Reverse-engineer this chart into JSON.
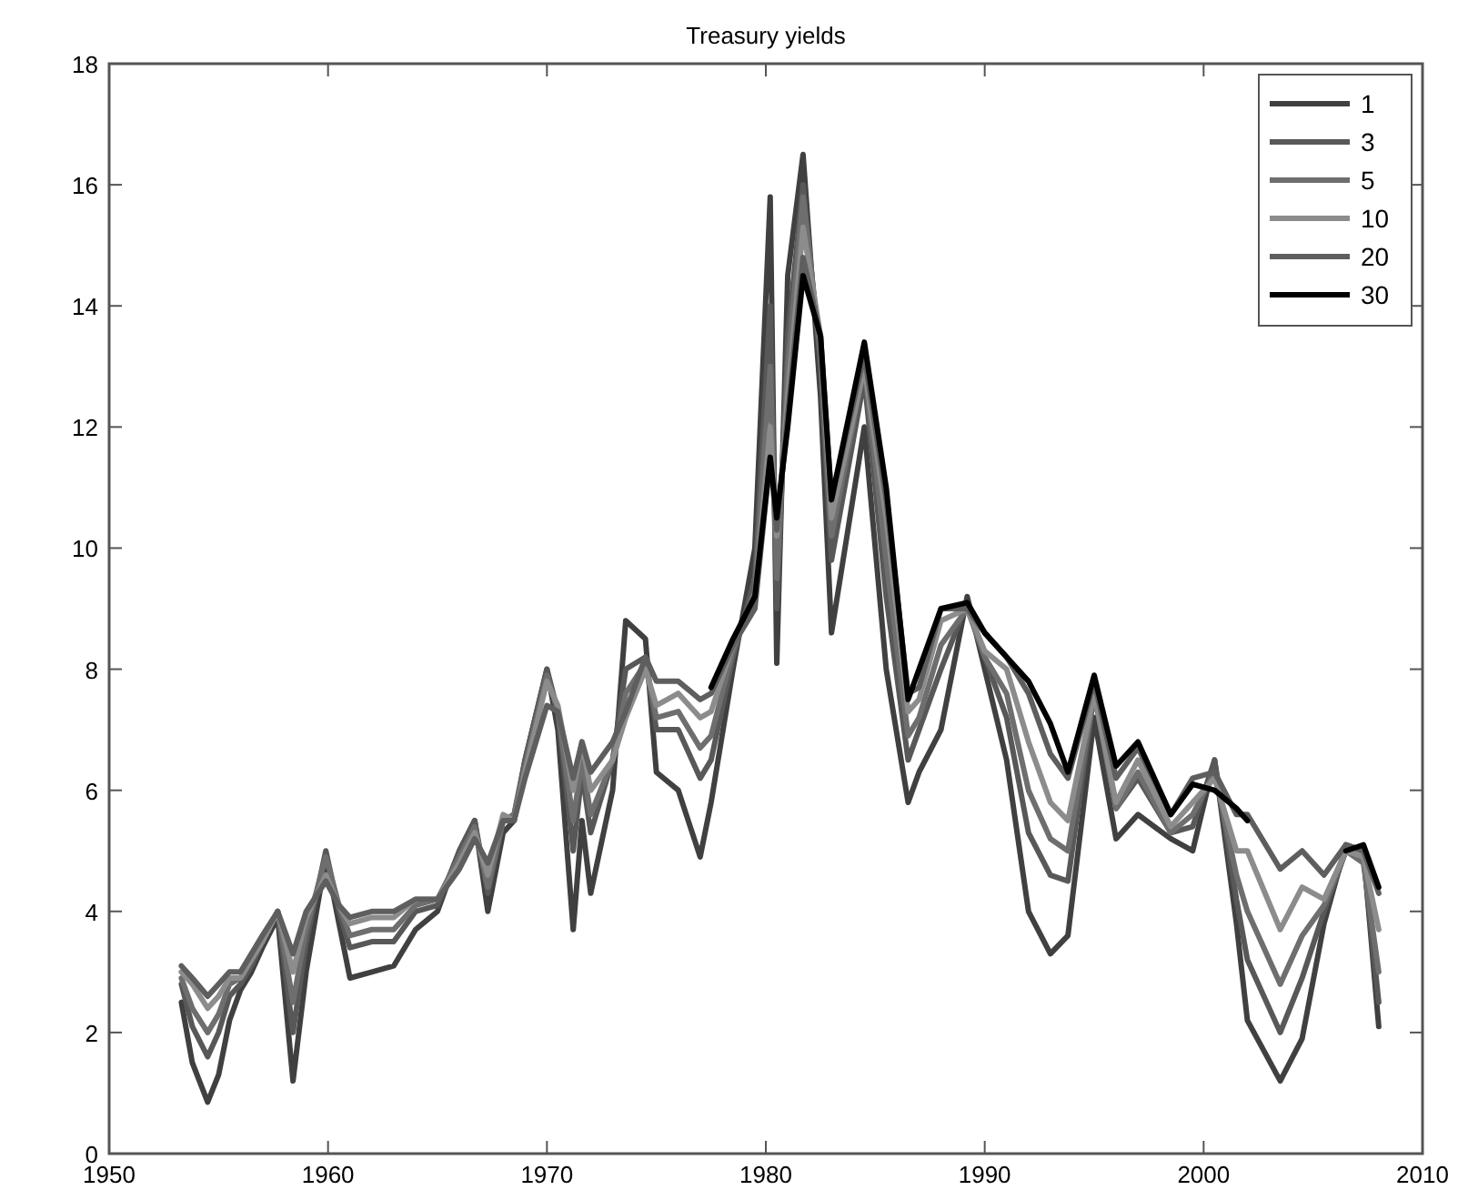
{
  "chart_data": {
    "type": "line",
    "title": "Treasury yields",
    "legend": "top right",
    "xlim": [
      1950,
      2010
    ],
    "xticks": [
      1950,
      1960,
      1970,
      1980,
      1990,
      2000,
      2010
    ],
    "ylim": [
      0,
      18
    ],
    "yticks": [
      0,
      2,
      4,
      6,
      8,
      10,
      12,
      14,
      16,
      18
    ],
    "x": [
      1953.3,
      1953.8,
      1954.5,
      1955.0,
      1955.5,
      1956.0,
      1956.5,
      1957.0,
      1957.7,
      1958.4,
      1959.0,
      1959.9,
      1960.5,
      1961.0,
      1962.0,
      1963.0,
      1964.0,
      1965.0,
      1966.0,
      1966.7,
      1967.3,
      1968.0,
      1968.5,
      1969.0,
      1970.0,
      1970.5,
      1971.2,
      1971.6,
      1972.0,
      1973.0,
      1973.6,
      1974.5,
      1975.0,
      1976.0,
      1977.0,
      1977.5,
      1978.5,
      1979.5,
      1980.2,
      1980.5,
      1981.0,
      1981.7,
      1982.5,
      1983.0,
      1984.5,
      1985.5,
      1986.5,
      1987.0,
      1988.0,
      1989.2,
      1990.0,
      1991.0,
      1992.0,
      1993.0,
      1993.8,
      1995.0,
      1996.0,
      1997.0,
      1998.5,
      1999.5,
      2000.5,
      2001.5,
      2002.0,
      2003.5,
      2004.5,
      2005.5,
      2006.5,
      2007.3,
      2008.0
    ],
    "series": [
      {
        "name": "1",
        "color": "#404040",
        "values": [
          2.5,
          1.5,
          0.85,
          1.3,
          2.2,
          2.7,
          3.0,
          3.4,
          3.9,
          1.2,
          3.0,
          4.9,
          3.8,
          2.9,
          3.0,
          3.1,
          3.7,
          4.0,
          5.0,
          5.5,
          4.0,
          5.3,
          5.5,
          6.5,
          8.0,
          7.0,
          3.7,
          5.5,
          4.3,
          6.0,
          8.8,
          8.5,
          6.3,
          6.0,
          4.9,
          5.8,
          8.0,
          10.0,
          15.8,
          8.1,
          14.5,
          16.5,
          12.5,
          8.6,
          12.0,
          8.0,
          5.8,
          6.3,
          7.0,
          9.2,
          8.0,
          6.5,
          4.0,
          3.3,
          3.6,
          7.2,
          5.2,
          5.6,
          5.2,
          5.0,
          6.5,
          3.8,
          2.2,
          1.2,
          1.9,
          3.8,
          5.1,
          5.0,
          2.1
        ]
      },
      {
        "name": "3",
        "color": "#585858",
        "values": [
          2.8,
          2.1,
          1.6,
          2.0,
          2.6,
          2.8,
          3.1,
          3.5,
          4.0,
          2.0,
          3.5,
          5.0,
          4.0,
          3.4,
          3.5,
          3.5,
          4.0,
          4.1,
          5.0,
          5.5,
          4.3,
          5.5,
          5.6,
          6.5,
          8.0,
          7.3,
          5.0,
          6.3,
          5.3,
          6.5,
          8.0,
          8.2,
          7.0,
          7.0,
          6.2,
          6.5,
          8.2,
          9.5,
          14.0,
          9.0,
          13.5,
          16.0,
          13.0,
          9.8,
          12.8,
          9.2,
          6.5,
          7.0,
          8.0,
          9.1,
          8.2,
          7.2,
          5.3,
          4.6,
          4.5,
          7.6,
          5.7,
          6.2,
          5.3,
          5.4,
          6.5,
          4.2,
          3.2,
          2.0,
          2.9,
          4.0,
          5.0,
          4.9,
          2.5
        ]
      },
      {
        "name": "5",
        "color": "#6e6e6e",
        "values": [
          2.9,
          2.4,
          2.0,
          2.3,
          2.8,
          2.9,
          3.2,
          3.5,
          4.0,
          2.5,
          3.7,
          4.9,
          4.1,
          3.6,
          3.7,
          3.7,
          4.1,
          4.2,
          4.9,
          5.4,
          4.4,
          5.5,
          5.6,
          6.4,
          7.9,
          7.3,
          5.5,
          6.5,
          5.6,
          6.5,
          7.6,
          8.1,
          7.2,
          7.3,
          6.7,
          6.9,
          8.3,
          9.3,
          13.0,
          9.5,
          13.0,
          15.8,
          13.2,
          10.2,
          13.0,
          9.8,
          6.9,
          7.2,
          8.4,
          9.0,
          8.2,
          7.6,
          6.0,
          5.2,
          5.0,
          7.6,
          5.7,
          6.3,
          5.3,
          5.6,
          6.3,
          4.6,
          4.0,
          2.8,
          3.6,
          4.1,
          5.0,
          4.8,
          3.0
        ]
      },
      {
        "name": "10",
        "color": "#8c8c8c",
        "values": [
          3.0,
          2.8,
          2.4,
          2.6,
          2.9,
          2.9,
          3.2,
          3.5,
          4.0,
          3.0,
          3.9,
          4.6,
          4.1,
          3.8,
          3.9,
          3.9,
          4.2,
          4.2,
          4.8,
          5.3,
          4.6,
          5.6,
          5.5,
          6.3,
          7.8,
          7.4,
          6.0,
          6.8,
          6.0,
          6.5,
          7.2,
          8.0,
          7.4,
          7.6,
          7.2,
          7.3,
          8.4,
          9.2,
          12.0,
          10.2,
          12.5,
          15.3,
          13.5,
          10.5,
          13.0,
          10.5,
          7.3,
          7.5,
          8.8,
          9.0,
          8.3,
          8.0,
          6.8,
          5.8,
          5.5,
          7.6,
          5.8,
          6.5,
          5.4,
          5.8,
          6.2,
          5.0,
          5.0,
          3.7,
          4.4,
          4.2,
          5.0,
          4.9,
          3.7
        ]
      },
      {
        "name": "20",
        "color": "#5e5e5e",
        "values": [
          3.1,
          2.9,
          2.6,
          2.8,
          3.0,
          3.0,
          3.3,
          3.6,
          4.0,
          3.3,
          4.0,
          4.5,
          4.1,
          3.9,
          4.0,
          4.0,
          4.2,
          4.2,
          4.7,
          5.2,
          4.8,
          5.5,
          5.5,
          6.2,
          7.4,
          7.3,
          6.2,
          6.8,
          6.3,
          6.8,
          7.3,
          8.2,
          7.8,
          7.8,
          7.5,
          7.6,
          8.4,
          9.0,
          11.5,
          10.3,
          12.2,
          14.8,
          13.5,
          10.8,
          13.2,
          10.8,
          7.6,
          7.7,
          9.0,
          9.0,
          8.6,
          8.2,
          7.6,
          6.6,
          6.2,
          7.8,
          6.2,
          6.7,
          5.6,
          6.2,
          6.3,
          5.6,
          5.6,
          4.7,
          5.0,
          4.6,
          5.1,
          5.0,
          4.3
        ]
      },
      {
        "name": "30",
        "color": "#000000",
        "values": [
          null,
          null,
          null,
          null,
          null,
          null,
          null,
          null,
          null,
          null,
          null,
          null,
          null,
          null,
          null,
          null,
          null,
          null,
          null,
          null,
          null,
          null,
          null,
          null,
          null,
          null,
          null,
          null,
          null,
          null,
          null,
          null,
          null,
          null,
          null,
          7.7,
          8.5,
          9.2,
          11.5,
          10.5,
          12.0,
          14.5,
          13.5,
          10.8,
          13.4,
          11.0,
          7.5,
          8.0,
          9.0,
          9.1,
          8.6,
          8.2,
          7.8,
          7.1,
          6.3,
          7.9,
          6.4,
          6.8,
          5.6,
          6.1,
          6.0,
          5.7,
          5.5,
          null,
          null,
          null,
          5.0,
          5.1,
          4.4
        ]
      }
    ]
  }
}
